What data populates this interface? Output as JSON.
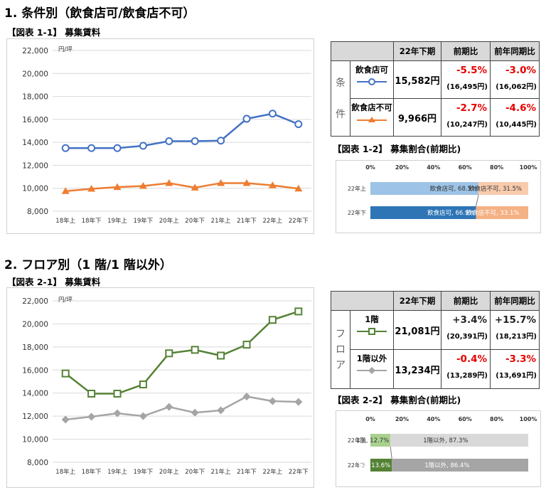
{
  "section1": {
    "title": "1. 条件別（飲食店可/飲食店不可）",
    "fig1_label": "【図表 1-1】 募集賃料",
    "fig2_label": "【図表 1-2】 募集割合(前期比)",
    "table": {
      "group_label_chars": [
        "条",
        "件"
      ],
      "headers": [
        "22年下期",
        "前期比",
        "前年同期比"
      ],
      "rows": [
        {
          "name": "飲食店可",
          "value": "15,582円",
          "qoq": "-5.5%",
          "qoq_prev": "(16,495円)",
          "yoy": "-3.0%",
          "yoy_prev": "(16,062円)"
        },
        {
          "name": "飲食店不可",
          "value": "9,966円",
          "qoq": "-2.7%",
          "qoq_prev": "(10,247円)",
          "yoy": "-4.6%",
          "yoy_prev": "(10,445円)"
        }
      ]
    }
  },
  "section2": {
    "title": "2. フロア別（1 階/1 階以外）",
    "fig1_label": "【図表 2-1】 募集賃料",
    "fig2_label": "【図表 2-2】 募集割合(前期比)",
    "table": {
      "group_label_chars": [
        "フ",
        "ロ",
        "ア"
      ],
      "headers": [
        "22年下期",
        "前期比",
        "前年同期比"
      ],
      "rows": [
        {
          "name": "1階",
          "value": "21,081円",
          "qoq": "+3.4%",
          "qoq_prev": "(20,391円)",
          "yoy": "+15.7%",
          "yoy_prev": "(18,213円)"
        },
        {
          "name": "1階以外",
          "value": "13,234円",
          "qoq": "-0.4%",
          "qoq_prev": "(13,289円)",
          "yoy": "-3.3%",
          "yoy_prev": "(13,691円)"
        }
      ]
    }
  },
  "colors": {
    "blue": "#4472c4",
    "orange": "#ed7d31",
    "green": "#548235",
    "gray": "#a5a5a5",
    "bar_blue_light": "#9dc3e6",
    "bar_blue_dark": "#2e75b6",
    "bar_orange_light": "#f8cbad",
    "bar_orange_dark": "#f4b183",
    "bar_green_light": "#a9d18e",
    "bar_green_dark": "#548235",
    "bar_gray_light": "#d9d9d9",
    "bar_gray_dark": "#a5a5a5",
    "negative": "#e60000"
  },
  "chart_data": [
    {
      "id": "fig-1-1",
      "type": "line",
      "unit": "円/坪",
      "categories": [
        "18年上",
        "18年下",
        "19年上",
        "19年下",
        "20年上",
        "20年下",
        "21年上",
        "21年下",
        "22年上",
        "22年下"
      ],
      "ylim": [
        8000,
        22000
      ],
      "yticks": [
        8000,
        10000,
        12000,
        14000,
        16000,
        18000,
        20000,
        22000
      ],
      "ytick_labels": [
        "8,000",
        "10,000",
        "12,000",
        "14,000",
        "16,000",
        "18,000",
        "20,000",
        "22,000"
      ],
      "grid": true,
      "series": [
        {
          "values": [
            13500,
            13500,
            13500,
            13700,
            14100,
            14100,
            14150,
            16050,
            16500,
            15582
          ],
          "marker": "circle",
          "color": "#4472c4"
        },
        {
          "values": [
            9750,
            9950,
            10100,
            10200,
            10450,
            10050,
            10450,
            10450,
            10250,
            9966
          ],
          "marker": "triangle",
          "color": "#ed7d31"
        }
      ]
    },
    {
      "id": "fig-1-2",
      "type": "bar",
      "orientation": "horizontal-stacked",
      "xticks": [
        "0%",
        "20%",
        "40%",
        "60%",
        "80%",
        "100%"
      ],
      "categories": [
        "22年上",
        "22年下"
      ],
      "series": [
        {
          "name": "飲食店可",
          "values": [
            68.5,
            66.9
          ],
          "labels": [
            "飲食店可, 68.5%",
            "飲食店可, 66.9%"
          ]
        },
        {
          "name": "飲食店不可",
          "values": [
            31.5,
            33.1
          ],
          "labels": [
            "飲食店不可, 31.5%",
            "飲食店不可, 33.1%"
          ]
        }
      ]
    },
    {
      "id": "fig-2-1",
      "type": "line",
      "unit": "円/坪",
      "categories": [
        "18年上",
        "18年下",
        "19年上",
        "19年下",
        "20年上",
        "20年下",
        "21年上",
        "21年下",
        "22年上",
        "22年下"
      ],
      "ylim": [
        8000,
        22000
      ],
      "yticks": [
        8000,
        10000,
        12000,
        14000,
        16000,
        18000,
        20000,
        22000
      ],
      "ytick_labels": [
        "8,000",
        "10,000",
        "12,000",
        "14,000",
        "16,000",
        "18,000",
        "20,000",
        "22,000"
      ],
      "grid": true,
      "series": [
        {
          "values": [
            15700,
            13950,
            13950,
            14750,
            17450,
            17750,
            17250,
            18200,
            20350,
            21081
          ],
          "marker": "square",
          "color": "#548235"
        },
        {
          "values": [
            11700,
            11950,
            12250,
            12000,
            12800,
            12300,
            12500,
            13700,
            13300,
            13234
          ],
          "marker": "diamond",
          "color": "#a5a5a5"
        }
      ]
    },
    {
      "id": "fig-2-2",
      "type": "bar",
      "orientation": "horizontal-stacked",
      "xticks": [
        "0%",
        "20%",
        "40%",
        "60%",
        "80%",
        "100%"
      ],
      "categories": [
        "22年上",
        "22年下"
      ],
      "series": [
        {
          "name": "1階",
          "values": [
            12.7,
            13.6
          ],
          "labels": [
            "1階, 12.7%",
            "1階, 13.6%"
          ]
        },
        {
          "name": "1階以外",
          "values": [
            87.3,
            86.4
          ],
          "labels": [
            "1階以外, 87.3%",
            "1階以外, 86.4%"
          ]
        }
      ]
    }
  ]
}
